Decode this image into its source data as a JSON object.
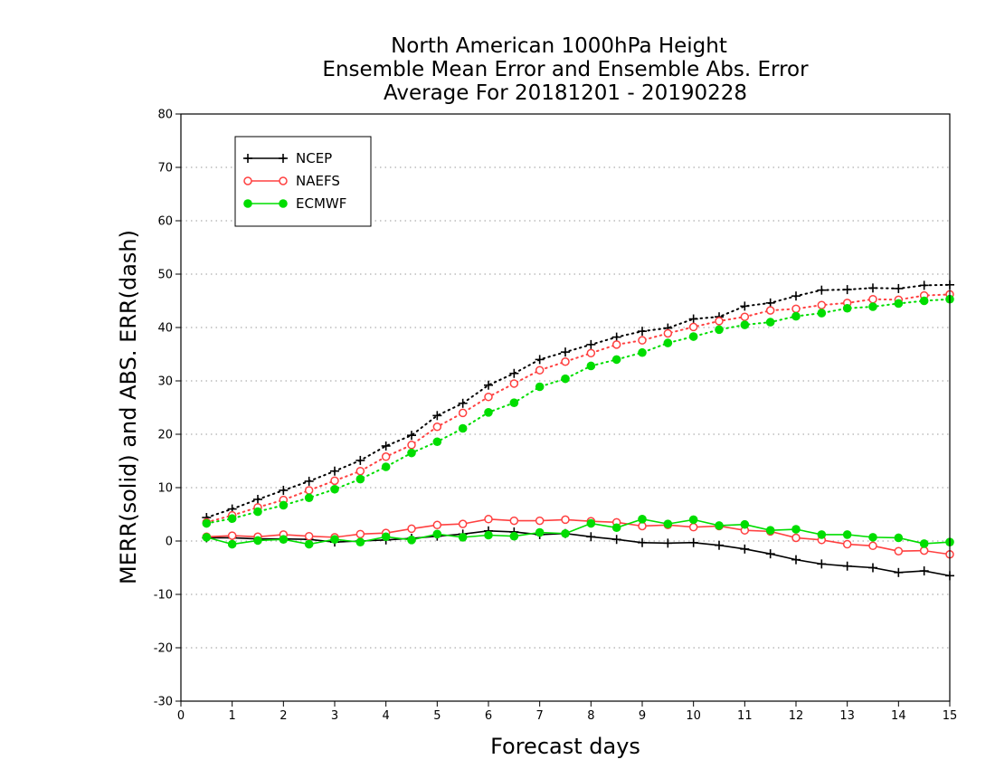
{
  "chart_data": {
    "type": "line",
    "title_lines": [
      "North American 1000hPa Height",
      "Ensemble Mean Error and Ensemble Abs. Error",
      "Average For 20181201 - 20190228"
    ],
    "xlabel": "Forecast days",
    "ylabel": "MERR(solid) and ABS. ERR(dash)",
    "xlim": [
      0,
      15
    ],
    "ylim": [
      -30,
      80
    ],
    "xticks": [
      "0",
      "1",
      "2",
      "3",
      "4",
      "5",
      "6",
      "7",
      "8",
      "9",
      "10",
      "11",
      "12",
      "13",
      "14",
      "15"
    ],
    "yticks": [
      "-30",
      "-20",
      "-10",
      "0",
      "10",
      "20",
      "30",
      "40",
      "50",
      "60",
      "70",
      "80"
    ],
    "grid": "horizontal dotted",
    "legend_position": "top-left",
    "x": [
      0.5,
      1,
      1.5,
      2,
      2.5,
      3,
      3.5,
      4,
      4.5,
      5,
      5.5,
      6,
      6.5,
      7,
      7.5,
      8,
      8.5,
      9,
      9.5,
      10,
      10.5,
      11,
      11.5,
      12,
      12.5,
      13,
      13.5,
      14,
      14.5,
      15
    ],
    "series": [
      {
        "name": "NCEP",
        "color": "#000000",
        "marker": "plus",
        "merr": [
          0.6,
          0.6,
          0.4,
          0.4,
          0.3,
          -0.2,
          0.0,
          0.2,
          0.5,
          0.9,
          1.3,
          1.9,
          1.7,
          1.2,
          1.4,
          0.8,
          0.3,
          -0.3,
          -0.4,
          -0.3,
          -0.8,
          -1.5,
          -2.4,
          -3.5,
          -4.3,
          -4.7,
          -5.0,
          -5.9,
          -5.6,
          -6.5
        ],
        "abs_err": [
          4.4,
          6.0,
          7.8,
          9.5,
          11.2,
          13.1,
          15.1,
          17.8,
          19.8,
          23.5,
          25.8,
          29.2,
          31.4,
          34.0,
          35.4,
          36.8,
          38.2,
          39.3,
          39.9,
          41.6,
          42.0,
          44.0,
          44.6,
          45.9,
          47.0,
          47.1,
          47.4,
          47.3,
          47.9,
          48.0
        ]
      },
      {
        "name": "NAEFS",
        "color": "#ff4040",
        "marker": "open-circle",
        "merr": [
          0.8,
          1.0,
          0.8,
          1.2,
          0.9,
          0.7,
          1.3,
          1.5,
          2.3,
          3.0,
          3.2,
          4.1,
          3.8,
          3.8,
          4.0,
          3.7,
          3.5,
          2.8,
          3.0,
          2.6,
          2.8,
          2.0,
          1.8,
          0.6,
          0.2,
          -0.6,
          -0.9,
          -1.9,
          -1.8,
          -2.5
        ],
        "abs_err": [
          3.5,
          4.8,
          6.3,
          7.7,
          9.5,
          11.3,
          13.1,
          15.8,
          18.0,
          21.4,
          24.0,
          27.0,
          29.5,
          32.0,
          33.6,
          35.2,
          36.8,
          37.6,
          38.9,
          40.1,
          41.2,
          42.0,
          43.2,
          43.5,
          44.2,
          44.6,
          45.3,
          45.2,
          46.0,
          46.2
        ]
      },
      {
        "name": "ECMWF",
        "color": "#00dd00",
        "marker": "filled-circle",
        "merr": [
          0.7,
          -0.6,
          0.1,
          0.3,
          -0.6,
          0.3,
          -0.2,
          0.8,
          0.2,
          1.3,
          0.7,
          1.1,
          0.9,
          1.6,
          1.4,
          3.3,
          2.5,
          4.1,
          3.2,
          4.0,
          2.9,
          3.1,
          2.0,
          2.2,
          1.2,
          1.2,
          0.7,
          0.6,
          -0.5,
          -0.2
        ],
        "abs_err": [
          3.3,
          4.2,
          5.5,
          6.7,
          8.1,
          9.7,
          11.6,
          13.9,
          16.5,
          18.6,
          21.1,
          24.1,
          25.9,
          28.9,
          30.4,
          32.8,
          34.0,
          35.3,
          37.1,
          38.3,
          39.6,
          40.5,
          41.0,
          42.1,
          42.7,
          43.6,
          43.9,
          44.5,
          45.0,
          45.3
        ]
      }
    ]
  }
}
